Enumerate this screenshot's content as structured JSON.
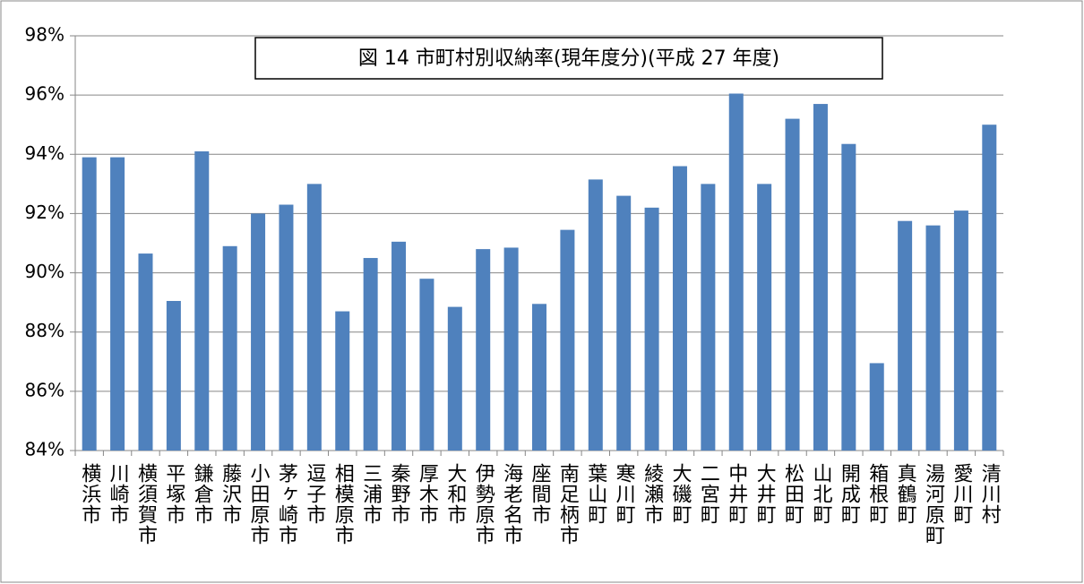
{
  "chart_data": {
    "type": "bar",
    "title": "図 14 市町村別収納率(現年度分)(平成 27 年度)",
    "categories": [
      "横浜市",
      "川崎市",
      "横須賀市",
      "平塚市",
      "鎌倉市",
      "藤沢市",
      "小田原市",
      "茅ヶ崎市",
      "逗子市",
      "相模原市",
      "三浦市",
      "秦野市",
      "厚木市",
      "大和市",
      "伊勢原市",
      "海老名市",
      "座間市",
      "南足柄市",
      "葉山町",
      "寒川町",
      "綾瀬市",
      "大磯町",
      "二宮町",
      "中井町",
      "大井町",
      "松田町",
      "山北町",
      "開成町",
      "箱根町",
      "真鶴町",
      "湯河原町",
      "愛川町",
      "清川村"
    ],
    "values": [
      93.9,
      93.9,
      90.65,
      89.05,
      94.1,
      90.9,
      92.0,
      92.3,
      93.0,
      88.7,
      90.5,
      91.05,
      89.8,
      88.85,
      90.8,
      90.85,
      88.95,
      91.45,
      93.15,
      92.6,
      92.2,
      93.6,
      93.0,
      96.05,
      93.0,
      95.2,
      95.7,
      94.35,
      86.95,
      91.75,
      91.6,
      92.1,
      95.0
    ],
    "color": "#4f81bd",
    "ylim": [
      84,
      98
    ],
    "yticks": [
      {
        "value": 84,
        "label": "84%"
      },
      {
        "value": 86,
        "label": "86%"
      },
      {
        "value": 88,
        "label": "88%"
      },
      {
        "value": 90,
        "label": "90%"
      },
      {
        "value": 92,
        "label": "92%"
      },
      {
        "value": 94,
        "label": "94%"
      },
      {
        "value": 96,
        "label": "96%"
      },
      {
        "value": 98,
        "label": "98%"
      }
    ],
    "grid": true
  }
}
